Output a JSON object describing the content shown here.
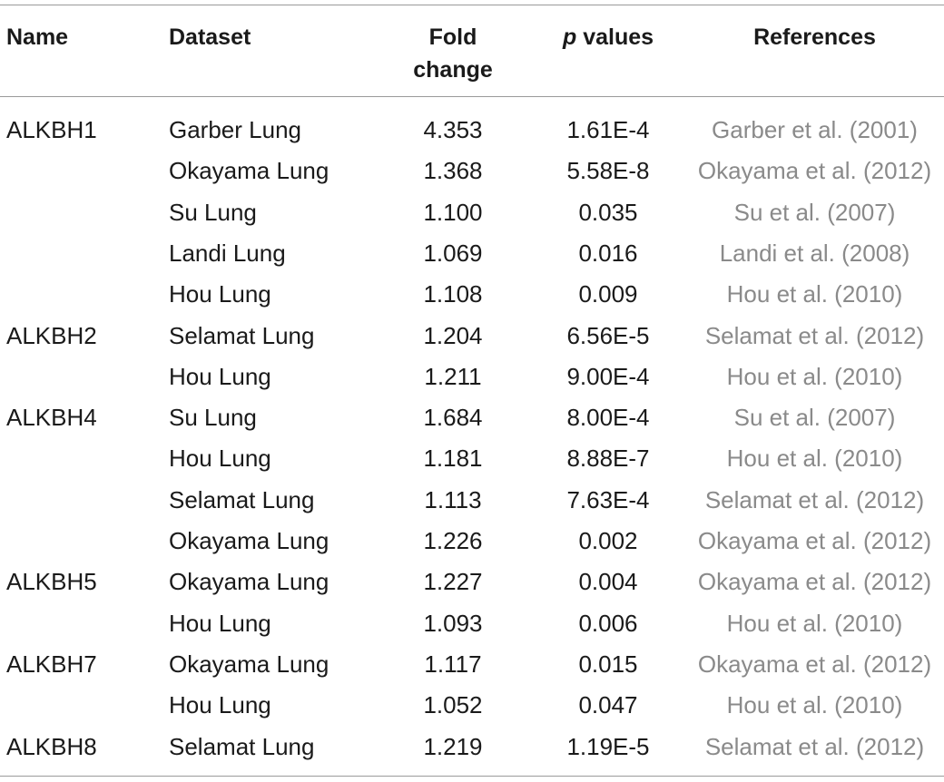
{
  "headers": {
    "name": "Name",
    "dataset": "Dataset",
    "fold_line1": "Fold",
    "fold_line2": "change",
    "p_italic": "p",
    "p_rest": " values",
    "references": "References"
  },
  "rows": [
    {
      "name": "ALKBH1",
      "dataset": "Garber Lung",
      "fold": "4.353",
      "p": "1.61E-4",
      "ref": "Garber et al. (2001)"
    },
    {
      "name": "",
      "dataset": "Okayama Lung",
      "fold": "1.368",
      "p": "5.58E-8",
      "ref": "Okayama et al. (2012)"
    },
    {
      "name": "",
      "dataset": "Su Lung",
      "fold": "1.100",
      "p": "0.035",
      "ref": "Su et al. (2007)"
    },
    {
      "name": "",
      "dataset": "Landi Lung",
      "fold": "1.069",
      "p": "0.016",
      "ref": "Landi et al. (2008)"
    },
    {
      "name": "",
      "dataset": "Hou Lung",
      "fold": "1.108",
      "p": "0.009",
      "ref": "Hou et al. (2010)"
    },
    {
      "name": "ALKBH2",
      "dataset": "Selamat Lung",
      "fold": "1.204",
      "p": "6.56E-5",
      "ref": "Selamat et al. (2012)"
    },
    {
      "name": "",
      "dataset": "Hou Lung",
      "fold": "1.211",
      "p": "9.00E-4",
      "ref": "Hou et al. (2010)"
    },
    {
      "name": "ALKBH4",
      "dataset": "Su Lung",
      "fold": "1.684",
      "p": "8.00E-4",
      "ref": "Su et al. (2007)"
    },
    {
      "name": "",
      "dataset": "Hou Lung",
      "fold": "1.181",
      "p": "8.88E-7",
      "ref": "Hou et al. (2010)"
    },
    {
      "name": "",
      "dataset": "Selamat Lung",
      "fold": "1.113",
      "p": "7.63E-4",
      "ref": "Selamat et al. (2012)"
    },
    {
      "name": "",
      "dataset": "Okayama Lung",
      "fold": "1.226",
      "p": "0.002",
      "ref": "Okayama et al. (2012)"
    },
    {
      "name": "ALKBH5",
      "dataset": "Okayama Lung",
      "fold": "1.227",
      "p": "0.004",
      "ref": "Okayama et al. (2012)"
    },
    {
      "name": "",
      "dataset": "Hou Lung",
      "fold": "1.093",
      "p": "0.006",
      "ref": "Hou et al. (2010)"
    },
    {
      "name": "ALKBH7",
      "dataset": "Okayama Lung",
      "fold": "1.117",
      "p": "0.015",
      "ref": "Okayama et al. (2012)"
    },
    {
      "name": "",
      "dataset": "Hou Lung",
      "fold": "1.052",
      "p": "0.047",
      "ref": "Hou et al. (2010)"
    },
    {
      "name": "ALKBH8",
      "dataset": "Selamat Lung",
      "fold": "1.219",
      "p": "1.19E-5",
      "ref": "Selamat et al. (2012)"
    }
  ]
}
